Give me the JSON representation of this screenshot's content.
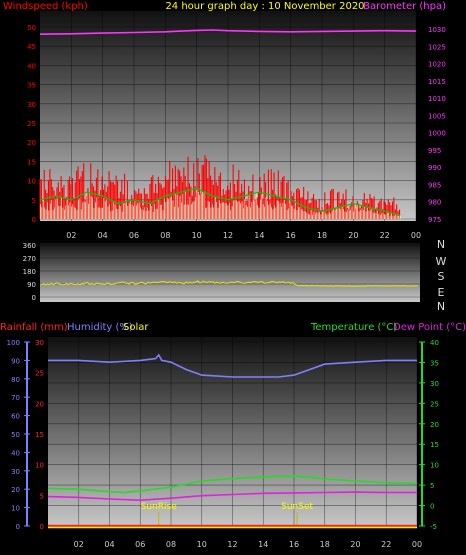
{
  "header": {
    "windspeed_label": "Windspeed (kph)",
    "title": "24 hour graph day : 10 November 2020",
    "barometer_label": "Barometer (hpa)"
  },
  "lower_header": {
    "rainfall_label": "Rainfall (mm)",
    "humidity_label": "Humidity (%)",
    "solar_label": "Solar",
    "temperature_label": "Temperature (°C)",
    "dewpoint_label": "Dew Point (°C)"
  },
  "colors": {
    "wind": "#ff0000",
    "gust": "#00c800",
    "barometer": "#ff33ff",
    "direction": "#e6e600",
    "humidity": "#8080ff",
    "temperature": "#22dd22",
    "dewpoint": "#dd22dd",
    "rainfall": "#ff2222",
    "solar": "#ffff00",
    "event_line": "#bbbb00",
    "plot_bg_top": "#111111",
    "plot_bg_bottom": "#c8c8c8"
  },
  "chart_data": [
    {
      "type": "line",
      "name": "wind-panel",
      "x_ticks": [
        "02",
        "04",
        "06",
        "08",
        "10",
        "12",
        "14",
        "16",
        "18",
        "20",
        "22",
        "00"
      ],
      "x_range": [
        0,
        24
      ],
      "left_axis": {
        "label": "Windspeed (kph)",
        "range": [
          0,
          50
        ],
        "ticks": [
          "0",
          "5",
          "10",
          "15",
          "20",
          "25",
          "30",
          "35",
          "40",
          "45",
          "50"
        ]
      },
      "right_axis": {
        "label": "Barometer (hpa)",
        "range": [
          975,
          1030
        ],
        "ticks": [
          "975",
          "980",
          "985",
          "990",
          "995",
          "1000",
          "1005",
          "1010",
          "1015",
          "1020",
          "1025",
          "1030"
        ]
      },
      "barometer": {
        "x": [
          0,
          2,
          4,
          6,
          8,
          9,
          10,
          11,
          12,
          14,
          16,
          18,
          20,
          22,
          24
        ],
        "y": [
          1028.5,
          1028.6,
          1028.8,
          1029.0,
          1029.2,
          1029.4,
          1029.6,
          1029.7,
          1029.5,
          1029.3,
          1029.2,
          1029.3,
          1029.4,
          1029.5,
          1029.4
        ]
      },
      "wind_envelope": {
        "x": [
          0,
          0.5,
          1,
          1.5,
          2,
          2.5,
          3,
          3.5,
          4,
          4.5,
          5,
          5.5,
          6,
          6.5,
          7,
          7.5,
          8,
          8.5,
          9,
          9.5,
          10,
          10.5,
          11,
          11.5,
          12,
          12.5,
          13,
          13.5,
          14,
          14.5,
          15,
          15.5,
          16,
          16.5,
          17,
          17.5,
          18,
          18.5,
          19,
          19.5,
          20,
          20.5,
          21,
          21.5,
          22,
          22.5,
          23
        ],
        "y": [
          12,
          15,
          14,
          13,
          11,
          17,
          13,
          18,
          14,
          13,
          11,
          12,
          10,
          9,
          11,
          13,
          16,
          15,
          14,
          17,
          16,
          18,
          15,
          14,
          12,
          16,
          13,
          12,
          11,
          13,
          14,
          12,
          11,
          10,
          8,
          7,
          6,
          9,
          7,
          8,
          6,
          8,
          9,
          7,
          5,
          6,
          4
        ]
      },
      "gust_envelope": {
        "x": [
          0,
          1,
          2,
          3,
          4,
          5,
          6,
          7,
          8,
          9,
          10,
          11,
          12,
          13,
          14,
          15,
          16,
          17,
          18,
          19,
          20,
          21,
          22,
          23
        ],
        "y": [
          5,
          6,
          5,
          7,
          6,
          4,
          5,
          4,
          6,
          7,
          8,
          6,
          5,
          6,
          7,
          6,
          5,
          3,
          2,
          3,
          4,
          3,
          2,
          1
        ]
      }
    },
    {
      "type": "line",
      "name": "wind-direction-panel",
      "x_range": [
        0,
        24
      ],
      "y_axis": {
        "range": [
          0,
          360
        ],
        "ticks": [
          "0",
          "90",
          "180",
          "270",
          "360"
        ]
      },
      "compass_labels": [
        "N",
        "W",
        "S",
        "E",
        "N"
      ],
      "direction": {
        "x": [
          0,
          1,
          2,
          3,
          4,
          5,
          6,
          7,
          8,
          9,
          10,
          11,
          12,
          13,
          14,
          15,
          16,
          16.3,
          17,
          18,
          19,
          20,
          21,
          22,
          23,
          24
        ],
        "y": [
          85,
          92,
          88,
          95,
          90,
          98,
          95,
          100,
          102,
          98,
          105,
          100,
          103,
          99,
          101,
          102,
          100,
          80,
          78,
          77,
          77,
          76,
          77,
          77,
          77,
          78
        ]
      }
    },
    {
      "type": "line",
      "name": "temp-humidity-panel",
      "x_range": [
        0,
        24
      ],
      "axes": {
        "humidity": {
          "label": "Humidity (%)",
          "range": [
            0,
            100
          ],
          "ticks": [
            "0",
            "10",
            "20",
            "30",
            "40",
            "50",
            "60",
            "70",
            "80",
            "90",
            "100"
          ]
        },
        "rainfall": {
          "label": "Rainfall (mm)",
          "range": [
            0,
            30
          ],
          "ticks": [
            "0",
            "5",
            "10",
            "15",
            "20",
            "25",
            "30"
          ]
        },
        "temperature": {
          "label": "Temperature (°C)",
          "range": [
            -5,
            40
          ],
          "ticks": [
            "-5",
            "0",
            "5",
            "10",
            "15",
            "20",
            "25",
            "30",
            "35",
            "40"
          ]
        }
      },
      "series": [
        {
          "name": "Humidity (%)",
          "axis": "humidity",
          "x": [
            0,
            2,
            4,
            6,
            7,
            7.2,
            7.4,
            8,
            9,
            10,
            12,
            14,
            15,
            16,
            17,
            18,
            20,
            22,
            24
          ],
          "y": [
            90,
            90,
            89,
            90,
            91,
            93,
            90,
            89,
            85,
            82,
            81,
            81,
            81,
            82,
            85,
            88,
            89,
            90,
            90
          ]
        },
        {
          "name": "Temperature (°C)",
          "axis": "temperature",
          "x": [
            0,
            2,
            4,
            5,
            6,
            8,
            10,
            12,
            14,
            16,
            17,
            18,
            20,
            22,
            24
          ],
          "y": [
            4.2,
            4.0,
            3.4,
            3.2,
            3.6,
            4.5,
            6.0,
            6.6,
            7.0,
            7.2,
            7.0,
            6.5,
            6.0,
            5.6,
            5.4
          ]
        },
        {
          "name": "Dew Point (°C)",
          "axis": "temperature",
          "x": [
            0,
            2,
            4,
            6,
            8,
            10,
            12,
            14,
            16,
            18,
            20,
            22,
            24
          ],
          "y": [
            2.2,
            2.0,
            1.6,
            1.3,
            1.8,
            2.4,
            2.7,
            3.0,
            3.1,
            3.2,
            3.3,
            3.2,
            3.2
          ]
        },
        {
          "name": "Rainfall (mm)",
          "axis": "rainfall",
          "x": [
            0,
            24
          ],
          "y": [
            0,
            0
          ]
        }
      ],
      "events": [
        {
          "label": "SunRise",
          "x": 7.2
        },
        {
          "label": "SunSet",
          "x": 16.2
        }
      ]
    }
  ]
}
